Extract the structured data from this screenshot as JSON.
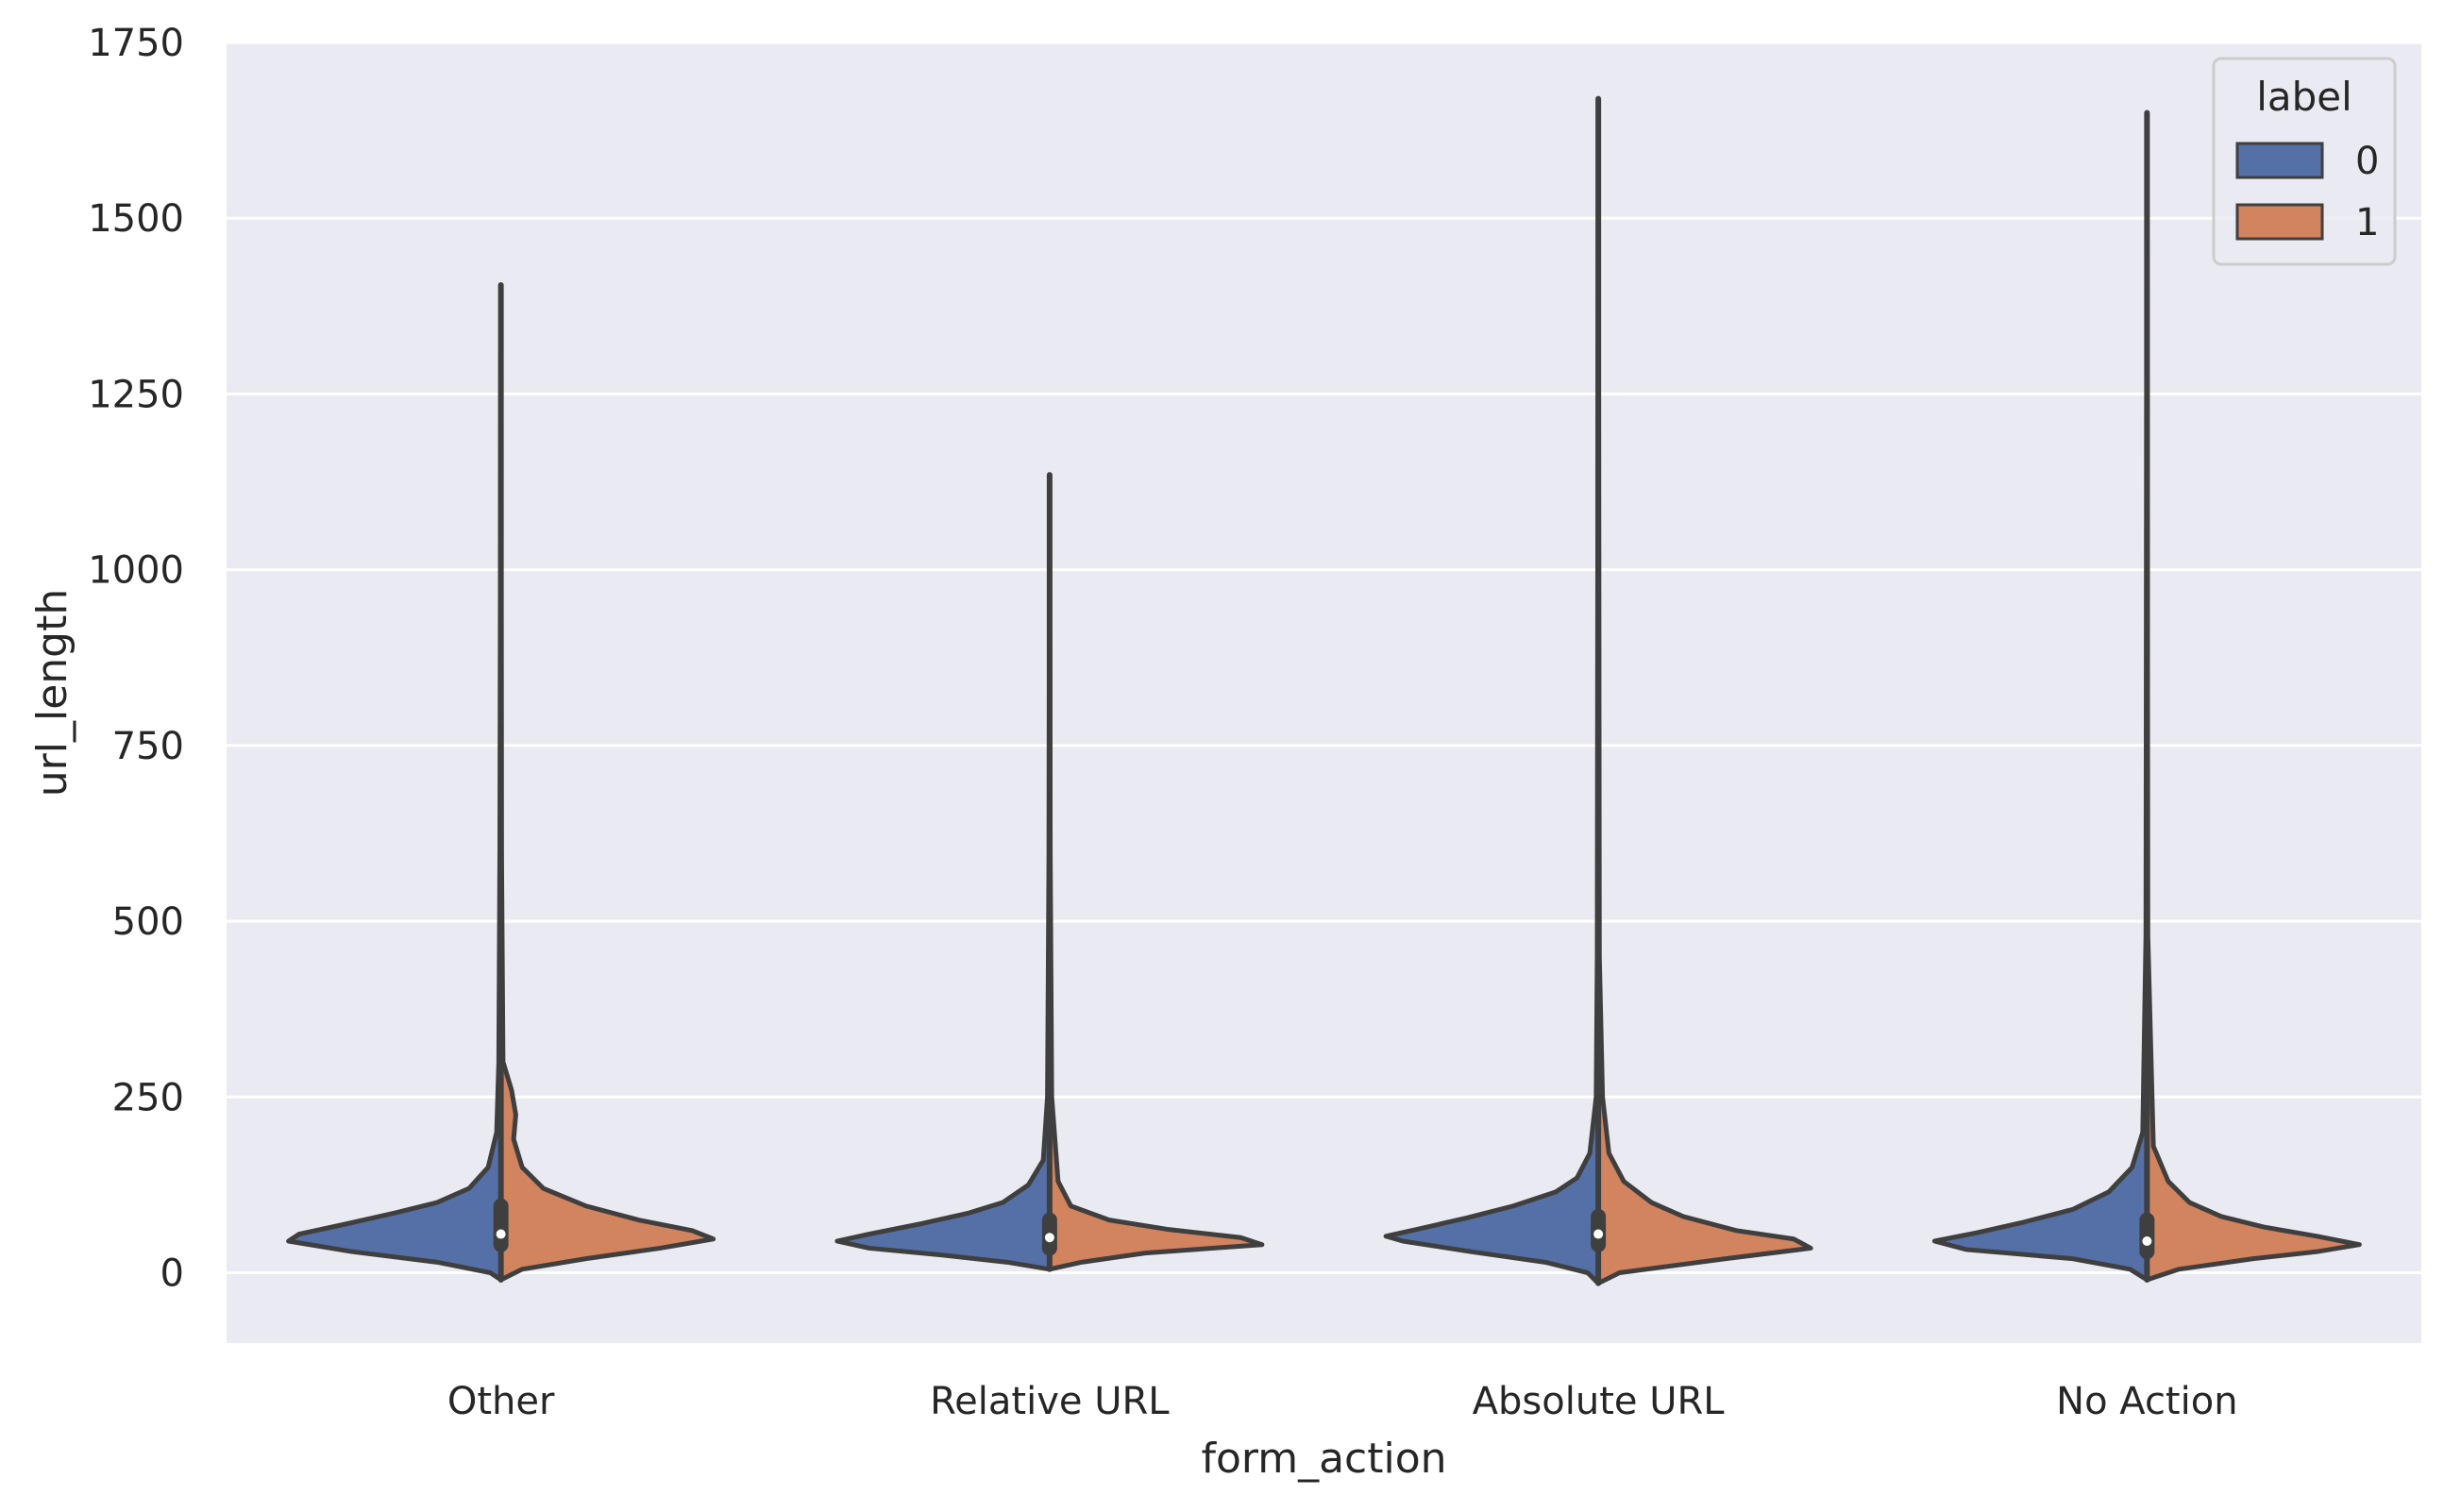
{
  "chart_data": {
    "type": "violin",
    "split": true,
    "xlabel": "form_action",
    "ylabel": "url_length",
    "ylim": [
      -100,
      1750
    ],
    "yticks": [
      0,
      250,
      500,
      750,
      1000,
      1250,
      1500,
      1750
    ],
    "grid": true,
    "background_color": "#eaeaf2",
    "legend": {
      "title": "label",
      "placement": "top-right"
    },
    "categories": [
      "Other",
      "Relative URL",
      "Absolute URL",
      "No Action"
    ],
    "series": [
      {
        "name": "0",
        "color": "#5470a7"
      },
      {
        "name": "1",
        "color": "#d2845f"
      }
    ],
    "violins": [
      {
        "category": "Other",
        "min": -10,
        "max": 1405,
        "q1": 40,
        "median": 55,
        "q3": 95,
        "density_0": [
          [
            -10,
            0
          ],
          [
            0,
            0.05
          ],
          [
            15,
            0.3
          ],
          [
            30,
            0.7
          ],
          [
            45,
            1.0
          ],
          [
            55,
            0.95
          ],
          [
            70,
            0.72
          ],
          [
            85,
            0.5
          ],
          [
            100,
            0.3
          ],
          [
            120,
            0.15
          ],
          [
            150,
            0.06
          ],
          [
            200,
            0.02
          ],
          [
            300,
            0.01
          ],
          [
            600,
            0.005
          ],
          [
            1405,
            0
          ]
        ],
        "density_1": [
          [
            -10,
            0
          ],
          [
            5,
            0.1
          ],
          [
            20,
            0.4
          ],
          [
            35,
            0.75
          ],
          [
            48,
            1.0
          ],
          [
            60,
            0.9
          ],
          [
            75,
            0.65
          ],
          [
            95,
            0.4
          ],
          [
            120,
            0.2
          ],
          [
            150,
            0.1
          ],
          [
            190,
            0.06
          ],
          [
            225,
            0.07
          ],
          [
            260,
            0.05
          ],
          [
            300,
            0.01
          ],
          [
            600,
            0.003
          ],
          [
            1405,
            0
          ]
        ]
      },
      {
        "category": "Relative URL",
        "min": 5,
        "max": 1135,
        "q1": 35,
        "median": 50,
        "q3": 75,
        "density_0": [
          [
            5,
            0
          ],
          [
            15,
            0.2
          ],
          [
            25,
            0.5
          ],
          [
            35,
            0.85
          ],
          [
            45,
            1.0
          ],
          [
            55,
            0.85
          ],
          [
            70,
            0.6
          ],
          [
            85,
            0.38
          ],
          [
            100,
            0.22
          ],
          [
            125,
            0.1
          ],
          [
            160,
            0.03
          ],
          [
            250,
            0.01
          ],
          [
            600,
            0.003
          ],
          [
            1135,
            0
          ]
        ],
        "density_1": [
          [
            5,
            0
          ],
          [
            15,
            0.15
          ],
          [
            28,
            0.45
          ],
          [
            40,
            1.0
          ],
          [
            50,
            0.9
          ],
          [
            62,
            0.55
          ],
          [
            75,
            0.28
          ],
          [
            95,
            0.1
          ],
          [
            130,
            0.04
          ],
          [
            250,
            0.01
          ],
          [
            600,
            0.003
          ],
          [
            1135,
            0
          ]
        ]
      },
      {
        "category": "Absolute URL",
        "min": -15,
        "max": 1670,
        "q1": 40,
        "median": 55,
        "q3": 80,
        "density_0": [
          [
            -15,
            0
          ],
          [
            0,
            0.05
          ],
          [
            15,
            0.25
          ],
          [
            30,
            0.6
          ],
          [
            45,
            0.92
          ],
          [
            52,
            1.0
          ],
          [
            62,
            0.85
          ],
          [
            78,
            0.62
          ],
          [
            95,
            0.4
          ],
          [
            115,
            0.2
          ],
          [
            135,
            0.1
          ],
          [
            170,
            0.04
          ],
          [
            250,
            0.01
          ],
          [
            450,
            0.005
          ],
          [
            1670,
            0
          ]
        ],
        "density_1": [
          [
            -15,
            0
          ],
          [
            0,
            0.1
          ],
          [
            20,
            0.6
          ],
          [
            35,
            1.0
          ],
          [
            48,
            0.92
          ],
          [
            60,
            0.65
          ],
          [
            80,
            0.4
          ],
          [
            100,
            0.25
          ],
          [
            130,
            0.12
          ],
          [
            170,
            0.05
          ],
          [
            250,
            0.02
          ],
          [
            450,
            0.005
          ],
          [
            1670,
            0
          ]
        ]
      },
      {
        "category": "No Action",
        "min": -10,
        "max": 1650,
        "q1": 30,
        "median": 45,
        "q3": 75,
        "density_0": [
          [
            -10,
            0
          ],
          [
            5,
            0.08
          ],
          [
            20,
            0.35
          ],
          [
            33,
            0.85
          ],
          [
            45,
            1.0
          ],
          [
            57,
            0.8
          ],
          [
            72,
            0.58
          ],
          [
            90,
            0.35
          ],
          [
            115,
            0.18
          ],
          [
            150,
            0.07
          ],
          [
            200,
            0.02
          ],
          [
            480,
            0.005
          ],
          [
            1650,
            0
          ]
        ],
        "density_1": [
          [
            -10,
            0
          ],
          [
            5,
            0.15
          ],
          [
            20,
            0.5
          ],
          [
            30,
            0.8
          ],
          [
            40,
            1.0
          ],
          [
            52,
            0.8
          ],
          [
            65,
            0.55
          ],
          [
            80,
            0.35
          ],
          [
            100,
            0.2
          ],
          [
            130,
            0.1
          ],
          [
            180,
            0.03
          ],
          [
            480,
            0.004
          ],
          [
            1650,
            0
          ]
        ]
      }
    ]
  }
}
